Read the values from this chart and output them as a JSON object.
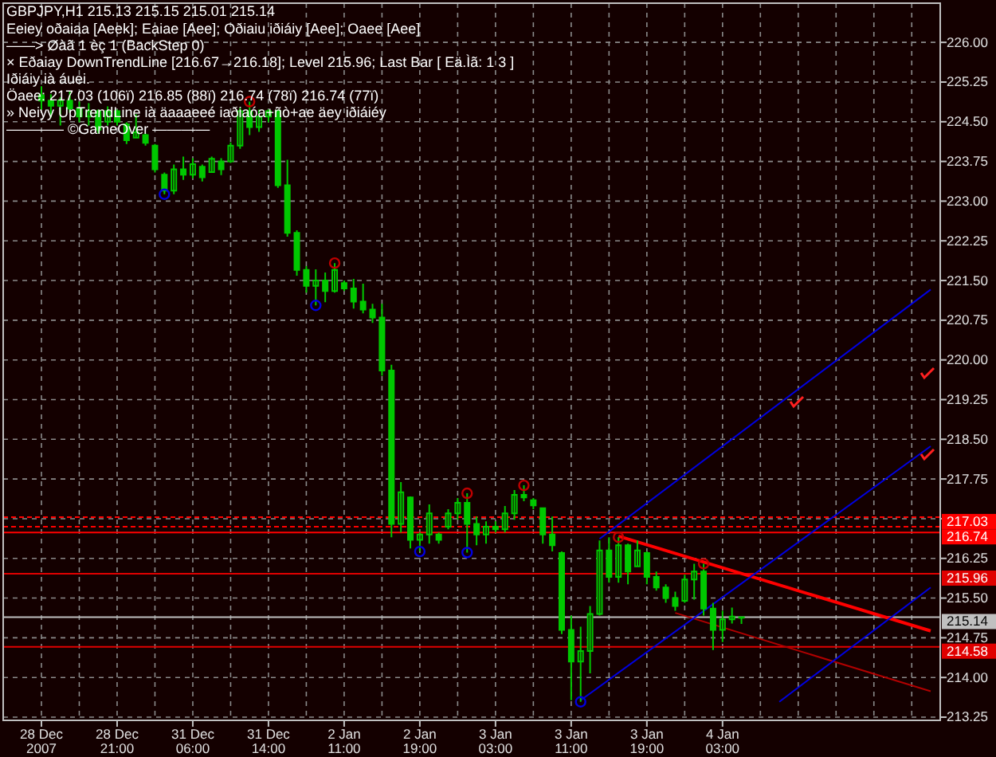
{
  "chart_data": {
    "type": "candlestick",
    "title": "GBPJPY,H1  215.13 215.15 215.01 215.14",
    "annotations": [
      "Eeiey oðaiaa [Aeek]; Eaiae [Aee]; Oðiaiu iðiáiy [Aee]; Oaee [Aee]",
      "——> Øàã 1 èç 1 (BackStep 0)",
      "× Eðaiay DownTrendLine [216.67→216.18]; Level 215.96; Last Bar [ Eä.Ìã: 1 3 ]",
      "Iðiáiy ià áuei.",
      "Öaee: 217.03 (106ï) 216.85 (88ï) 216.74 (78ï) 216.74 (77ï)",
      "» Neiyy UpTrendLine ià äaaaeeé iaðiaóa+ñò+ae äey iðiáiéy",
      "———— ©GameOver ————"
    ],
    "color": "#00c800",
    "categories": [
      "28 Dec 2007",
      null,
      null,
      null,
      null,
      null,
      null,
      null,
      "28 Dec 21:00",
      null,
      null,
      null,
      null,
      null,
      null,
      null,
      "31 Dec 06:00",
      null,
      null,
      null,
      null,
      null,
      null,
      null,
      "31 Dec 14:00",
      null,
      null,
      null,
      null,
      null,
      null,
      null,
      "2 Jan 11:00",
      null,
      null,
      null,
      null,
      null,
      null,
      null,
      "2 Jan 19:00",
      null,
      null,
      null,
      null,
      null,
      null,
      null,
      "3 Jan 03:00",
      null,
      null,
      null,
      null,
      null,
      null,
      null,
      "3 Jan 11:00",
      null,
      null,
      null,
      null,
      null,
      null,
      null,
      "3 Jan 19:00",
      null,
      null,
      null,
      null,
      null,
      null,
      null,
      "4 Jan 03:00",
      null,
      null,
      null,
      null,
      null,
      null,
      null,
      null,
      null,
      null,
      null,
      null,
      null,
      null,
      null,
      null,
      null,
      null,
      null,
      null,
      null,
      null
    ],
    "ohlc": [
      [
        225.0,
        225.17,
        224.73,
        224.9
      ],
      [
        224.9,
        225.02,
        224.58,
        224.8
      ],
      [
        224.8,
        224.96,
        224.43,
        224.9
      ],
      [
        224.9,
        225.08,
        224.67,
        224.75
      ],
      [
        224.75,
        224.88,
        224.49,
        224.6
      ],
      [
        224.6,
        224.85,
        224.43,
        224.7
      ],
      [
        224.7,
        224.73,
        224.28,
        224.35
      ],
      [
        224.5,
        224.79,
        224.43,
        224.7
      ],
      [
        224.7,
        224.73,
        224.43,
        224.5
      ],
      [
        224.45,
        224.49,
        224.08,
        224.15
      ],
      [
        224.2,
        224.64,
        224.2,
        224.3
      ],
      [
        224.25,
        224.28,
        224.05,
        224.1
      ],
      [
        224.05,
        224.08,
        223.54,
        223.6
      ],
      [
        223.5,
        223.54,
        223.13,
        223.2
      ],
      [
        223.2,
        223.69,
        223.13,
        223.6
      ],
      [
        223.6,
        223.84,
        223.4,
        223.5
      ],
      [
        223.5,
        223.81,
        223.43,
        223.7
      ],
      [
        223.65,
        223.69,
        223.37,
        223.45
      ],
      [
        223.55,
        223.84,
        223.54,
        223.8
      ],
      [
        223.75,
        223.81,
        223.49,
        223.6
      ],
      [
        223.75,
        224.11,
        223.72,
        224.05
      ],
      [
        224.05,
        224.76,
        223.99,
        224.7
      ],
      [
        224.7,
        224.88,
        224.25,
        224.4
      ],
      [
        224.4,
        224.73,
        224.31,
        224.6
      ],
      [
        224.6,
        224.73,
        224.49,
        224.7
      ],
      [
        224.7,
        224.73,
        223.25,
        223.3
      ],
      [
        223.3,
        223.78,
        222.33,
        222.4
      ],
      [
        222.4,
        222.45,
        221.59,
        221.7
      ],
      [
        221.7,
        221.77,
        221.27,
        221.4
      ],
      [
        221.4,
        221.71,
        221.03,
        221.5
      ],
      [
        221.5,
        221.65,
        221.09,
        221.3
      ],
      [
        221.3,
        221.83,
        221.27,
        221.7
      ],
      [
        221.45,
        221.5,
        221.3,
        221.35
      ],
      [
        221.35,
        221.53,
        220.97,
        221.1
      ],
      [
        221.1,
        221.44,
        220.88,
        220.95
      ],
      [
        220.95,
        221.06,
        220.7,
        220.8
      ],
      [
        220.8,
        221.06,
        219.7,
        219.8
      ],
      [
        219.8,
        219.91,
        216.65,
        216.9
      ],
      [
        216.9,
        217.69,
        216.74,
        217.5
      ],
      [
        217.4,
        217.42,
        216.44,
        216.6
      ],
      [
        216.6,
        216.74,
        216.38,
        216.7
      ],
      [
        216.7,
        217.27,
        216.53,
        217.1
      ],
      [
        216.7,
        216.74,
        216.53,
        216.6
      ],
      [
        216.85,
        217.18,
        216.8,
        217.1
      ],
      [
        217.1,
        217.39,
        216.98,
        217.3
      ],
      [
        217.3,
        217.48,
        216.36,
        216.9
      ],
      [
        216.9,
        217.04,
        216.5,
        216.7
      ],
      [
        216.7,
        216.95,
        216.53,
        216.85
      ],
      [
        216.85,
        216.95,
        216.74,
        216.8
      ],
      [
        216.8,
        217.24,
        216.74,
        217.1
      ],
      [
        217.1,
        217.54,
        216.98,
        217.45
      ],
      [
        217.45,
        217.63,
        217.33,
        217.4
      ],
      [
        217.35,
        217.39,
        217.18,
        217.25
      ],
      [
        217.2,
        217.21,
        216.53,
        216.7
      ],
      [
        216.7,
        217.04,
        216.38,
        216.5
      ],
      [
        216.35,
        216.38,
        214.82,
        214.9
      ],
      [
        214.9,
        215.17,
        213.57,
        214.3
      ],
      [
        214.3,
        214.96,
        213.54,
        214.5
      ],
      [
        214.5,
        215.35,
        214.08,
        215.2
      ],
      [
        215.2,
        216.59,
        215.17,
        216.4
      ],
      [
        216.4,
        216.65,
        215.79,
        215.9
      ],
      [
        215.9,
        216.65,
        215.79,
        216.5
      ],
      [
        216.5,
        216.53,
        215.76,
        216.0
      ],
      [
        216.1,
        216.59,
        216.09,
        216.4
      ],
      [
        216.35,
        216.38,
        215.76,
        215.9
      ],
      [
        215.9,
        216.0,
        215.64,
        215.7
      ],
      [
        215.7,
        215.76,
        215.41,
        215.5
      ],
      [
        215.5,
        215.62,
        215.26,
        215.35
      ],
      [
        215.45,
        215.94,
        215.41,
        215.85
      ],
      [
        215.85,
        216.15,
        215.47,
        216.0
      ],
      [
        216.0,
        216.15,
        215.17,
        215.3
      ],
      [
        215.3,
        215.41,
        214.52,
        214.9
      ],
      [
        214.9,
        215.26,
        214.67,
        215.1
      ],
      [
        215.1,
        215.32,
        215.02,
        215.15
      ],
      [
        215.13,
        215.15,
        215.01,
        215.14
      ],
      null,
      null,
      null,
      null,
      null,
      null,
      null,
      null,
      null,
      null,
      null,
      null,
      null,
      null,
      null,
      null,
      null,
      null,
      null,
      null
    ],
    "series": [
      {
        "type": "line",
        "color": "#ff0000",
        "values": [
          null,
          null,
          null,
          null,
          null,
          null,
          null,
          null,
          null,
          null,
          null,
          null,
          null,
          null,
          null,
          null,
          null,
          null,
          null,
          null,
          null,
          null,
          null,
          null,
          null,
          null,
          null,
          null,
          null,
          null,
          null,
          null,
          null,
          null,
          null,
          null,
          null,
          null,
          null,
          null,
          null,
          null,
          null,
          null,
          null,
          null,
          null,
          null,
          null,
          null,
          null,
          null,
          null,
          null,
          null,
          null,
          null,
          null,
          null,
          null,
          null,
          216.67,
          null,
          null,
          null,
          null,
          null,
          null,
          null,
          null,
          null,
          null,
          null,
          null,
          null,
          null,
          null,
          null,
          null,
          null,
          null,
          null,
          null,
          null,
          null,
          null,
          null,
          null,
          null,
          null,
          null,
          null,
          null,
          null,
          214.88
        ]
      },
      {
        "type": "line",
        "color": "#b00000",
        "values": [
          null,
          null,
          null,
          null,
          null,
          null,
          null,
          null,
          null,
          null,
          null,
          null,
          null,
          null,
          null,
          null,
          null,
          null,
          null,
          null,
          null,
          null,
          null,
          null,
          null,
          null,
          null,
          null,
          null,
          null,
          null,
          null,
          null,
          null,
          null,
          null,
          null,
          null,
          null,
          null,
          null,
          null,
          null,
          null,
          null,
          null,
          null,
          null,
          null,
          null,
          null,
          null,
          null,
          null,
          null,
          null,
          null,
          null,
          null,
          null,
          null,
          null,
          null,
          null,
          null,
          null,
          null,
          215.22,
          null,
          null,
          null,
          null,
          null,
          null,
          null,
          null,
          null,
          null,
          null,
          null,
          null,
          null,
          null,
          null,
          null,
          null,
          null,
          null,
          null,
          null,
          null,
          null,
          null,
          null,
          213.74
        ]
      },
      {
        "type": "line",
        "color": "#0000e0",
        "values": [
          null,
          null,
          null,
          null,
          null,
          null,
          null,
          null,
          null,
          null,
          null,
          null,
          null,
          null,
          null,
          null,
          null,
          null,
          null,
          null,
          null,
          null,
          null,
          null,
          null,
          null,
          null,
          null,
          null,
          null,
          null,
          null,
          null,
          null,
          null,
          null,
          null,
          null,
          null,
          null,
          null,
          null,
          null,
          null,
          null,
          null,
          null,
          null,
          null,
          null,
          null,
          null,
          null,
          null,
          null,
          null,
          null,
          null,
          null,
          216.62,
          null,
          null,
          null,
          null,
          null,
          null,
          null,
          null,
          null,
          null,
          null,
          null,
          null,
          null,
          null,
          null,
          null,
          null,
          null,
          null,
          null,
          null,
          null,
          null,
          null,
          null,
          null,
          null,
          null,
          null,
          null,
          null,
          null,
          null,
          221.33
        ]
      },
      {
        "type": "line",
        "color": "#0000e0",
        "values": [
          null,
          null,
          null,
          null,
          null,
          null,
          null,
          null,
          null,
          null,
          null,
          null,
          null,
          null,
          null,
          null,
          null,
          null,
          null,
          null,
          null,
          null,
          null,
          null,
          null,
          null,
          null,
          null,
          null,
          null,
          null,
          null,
          null,
          null,
          null,
          null,
          null,
          null,
          null,
          null,
          null,
          null,
          null,
          null,
          null,
          null,
          null,
          null,
          null,
          null,
          null,
          null,
          null,
          null,
          null,
          null,
          null,
          213.57,
          null,
          null,
          null,
          null,
          null,
          null,
          null,
          null,
          null,
          null,
          null,
          null,
          null,
          null,
          null,
          null,
          null,
          null,
          null,
          null,
          null,
          null,
          null,
          null,
          null,
          null,
          null,
          null,
          null,
          null,
          null,
          null,
          null,
          null,
          null,
          null,
          218.37
        ]
      },
      {
        "type": "line",
        "color": "#0000e0",
        "values": [
          null,
          null,
          null,
          null,
          null,
          null,
          null,
          null,
          null,
          null,
          null,
          null,
          null,
          null,
          null,
          null,
          null,
          null,
          null,
          null,
          null,
          null,
          null,
          null,
          null,
          null,
          null,
          null,
          null,
          null,
          null,
          null,
          null,
          null,
          null,
          null,
          null,
          null,
          null,
          null,
          null,
          null,
          null,
          null,
          null,
          null,
          null,
          null,
          null,
          null,
          null,
          null,
          null,
          null,
          null,
          null,
          null,
          null,
          null,
          null,
          null,
          null,
          null,
          null,
          null,
          null,
          null,
          null,
          null,
          null,
          null,
          null,
          null,
          null,
          null,
          null,
          null,
          null,
          213.54,
          null,
          null,
          null,
          null,
          null,
          null,
          null,
          null,
          null,
          null,
          null,
          null,
          null,
          null,
          null,
          215.7
        ]
      },
      {
        "type": "scatter",
        "marker": "circle",
        "color": "#c00000",
        "values": [
          null,
          null,
          null,
          null,
          null,
          null,
          null,
          null,
          null,
          null,
          null,
          null,
          null,
          null,
          null,
          null,
          null,
          null,
          null,
          null,
          null,
          null,
          224.88,
          null,
          null,
          null,
          null,
          null,
          null,
          null,
          null,
          221.83,
          null,
          null,
          null,
          null,
          null,
          null,
          null,
          null,
          null,
          null,
          null,
          null,
          null,
          217.48,
          null,
          null,
          null,
          null,
          null,
          217.63,
          null,
          null,
          null,
          null,
          null,
          null,
          null,
          null,
          null,
          216.65,
          null,
          null,
          null,
          null,
          null,
          null,
          null,
          null,
          216.15,
          null,
          null,
          null,
          null,
          null,
          null,
          null,
          null,
          null,
          null,
          null,
          null,
          null,
          null,
          null,
          null,
          null,
          null,
          null,
          null,
          null,
          null,
          null,
          null
        ]
      },
      {
        "type": "scatter",
        "marker": "circle",
        "color": "#0000e0",
        "values": [
          null,
          null,
          null,
          null,
          null,
          null,
          null,
          null,
          null,
          null,
          null,
          null,
          null,
          223.13,
          null,
          null,
          null,
          null,
          null,
          null,
          null,
          null,
          null,
          null,
          null,
          null,
          null,
          null,
          null,
          221.03,
          null,
          null,
          null,
          null,
          null,
          null,
          null,
          null,
          null,
          null,
          216.38,
          null,
          null,
          null,
          null,
          216.36,
          null,
          null,
          null,
          null,
          null,
          null,
          null,
          null,
          null,
          null,
          null,
          213.54,
          null,
          null,
          null,
          null,
          null,
          null,
          null,
          null,
          null,
          null,
          null,
          null,
          null,
          null,
          null,
          null,
          null,
          null,
          null,
          null,
          null,
          null,
          null,
          null,
          null,
          null,
          null,
          null,
          null,
          null,
          null,
          null,
          null,
          null,
          null,
          null,
          null
        ]
      }
    ],
    "ylim": [
      213.19,
      226.74
    ],
    "yticks": [
      {
        "value": 213.25,
        "label": "213.25"
      },
      {
        "value": 214,
        "label": "214.00"
      },
      {
        "value": 214.75,
        "label": "214.75"
      },
      {
        "value": 215.5,
        "label": "215.50"
      },
      {
        "value": 216.25,
        "label": "216.25"
      },
      {
        "value": 217,
        "label": null
      },
      {
        "value": 217.75,
        "label": "217.75"
      },
      {
        "value": 218.5,
        "label": "218.50"
      },
      {
        "value": 219.25,
        "label": "219.25"
      },
      {
        "value": 220,
        "label": "220.00"
      },
      {
        "value": 220.75,
        "label": "220.75"
      },
      {
        "value": 221.5,
        "label": "221.50"
      },
      {
        "value": 222.25,
        "label": "222.25"
      },
      {
        "value": 223,
        "label": "223.00"
      },
      {
        "value": 223.75,
        "label": "223.75"
      },
      {
        "value": 224.5,
        "label": "224.50"
      },
      {
        "value": 225.25,
        "label": "225.25"
      },
      {
        "value": 226,
        "label": "226.00"
      }
    ],
    "ref_lines": [
      {
        "axis": "y",
        "value": 217.03,
        "label": "217.03",
        "color": "#ff0000",
        "line_style": "dashed"
      },
      {
        "axis": "y",
        "value": 216.85,
        "color": "#ff0000",
        "line_style": "dashed"
      },
      {
        "axis": "y",
        "value": 216.74,
        "label": "216.74",
        "color": "#ff0000",
        "line_style": "solid"
      },
      {
        "axis": "y",
        "value": 215.96,
        "label": "215.96",
        "color": "#e00000",
        "line_style": "solid"
      },
      {
        "axis": "y",
        "value": 215.14,
        "label": "215.14",
        "color": "#c0c0c0",
        "line_style": "solid"
      },
      {
        "axis": "y",
        "value": 214.58,
        "label": "214.58",
        "color": "#e00000",
        "line_style": "solid"
      }
    ],
    "grid": true
  }
}
